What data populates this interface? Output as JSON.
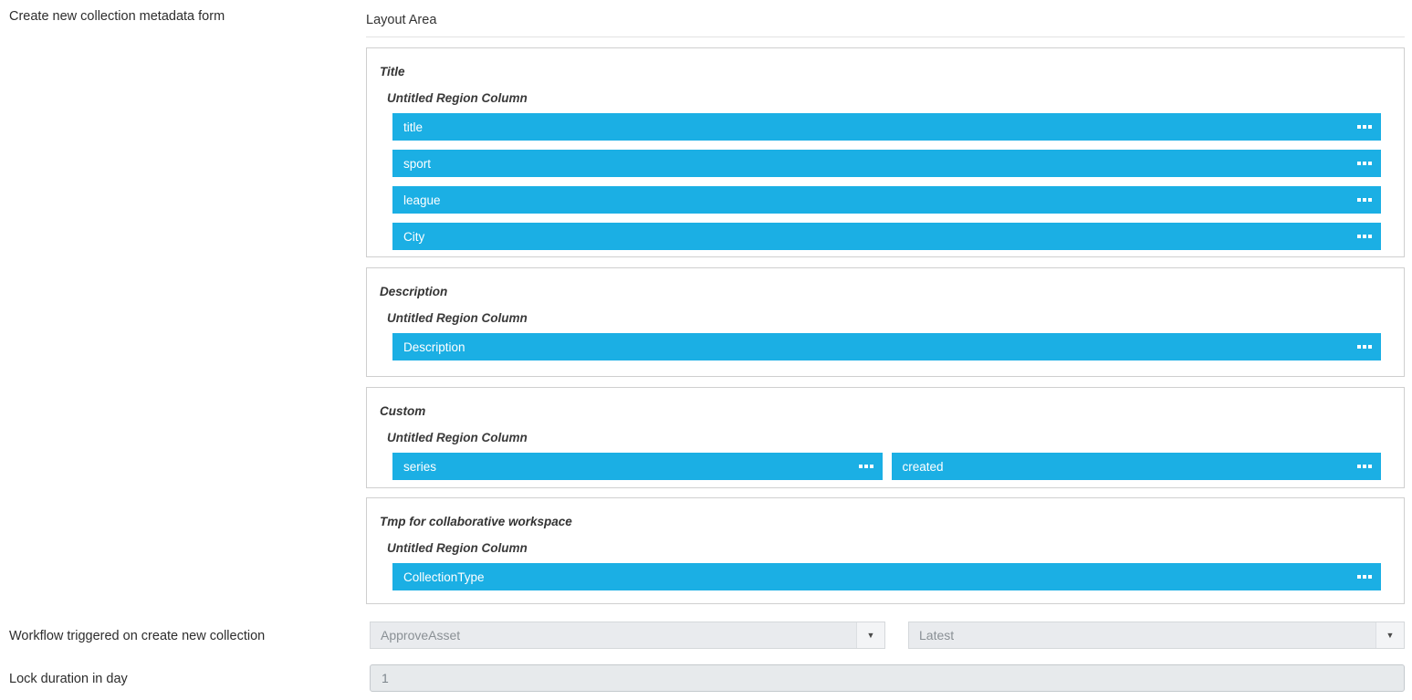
{
  "form": {
    "metadata_form_label": "Create new collection metadata form",
    "layout_area": {
      "title": "Layout Area",
      "regions": [
        {
          "title": "Title",
          "column_label": "Untitled Region Column",
          "rows": [
            [
              "title"
            ],
            [
              "sport"
            ],
            [
              "league"
            ],
            [
              "City"
            ]
          ]
        },
        {
          "title": "Description",
          "column_label": "Untitled Region Column",
          "rows": [
            [
              "Description"
            ]
          ]
        },
        {
          "title": "Custom",
          "column_label": "Untitled Region Column",
          "rows": [
            [
              "series",
              "created"
            ]
          ]
        },
        {
          "title": "Tmp for collaborative workspace",
          "column_label": "Untitled Region Column",
          "rows": [
            [
              "CollectionType"
            ]
          ]
        }
      ]
    },
    "workflow": {
      "label": "Workflow triggered on create new collection",
      "workflow_select_value": "ApproveAsset",
      "version_select_value": "Latest"
    },
    "lock": {
      "label": "Lock duration in day",
      "value": "1"
    }
  },
  "icons": {
    "dropdown_arrow": "▼",
    "drag_handle": "three-squares-ellipsis"
  },
  "colors": {
    "field_blue": "#1bafe4",
    "region_border": "#cfcfcf",
    "control_bg": "#e9ebee",
    "control_text": "#8a9095",
    "label_text": "#2d2d2d"
  }
}
